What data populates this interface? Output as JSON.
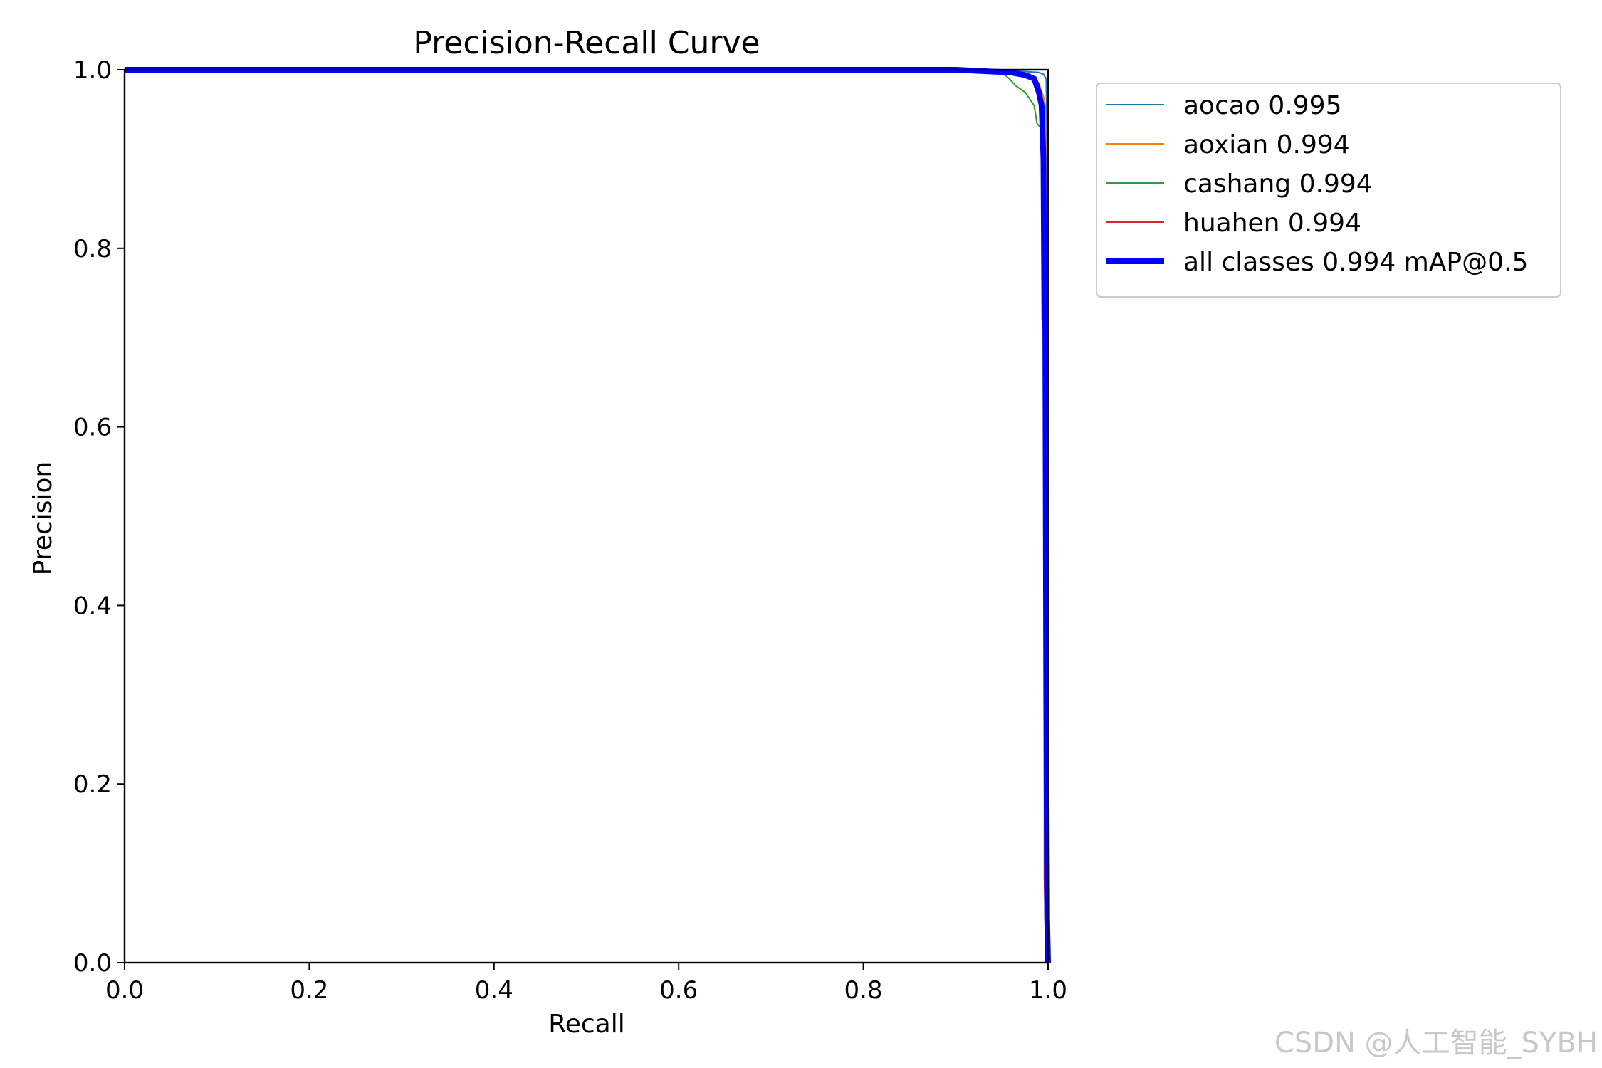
{
  "chart_data": {
    "type": "line",
    "title": "Precision-Recall Curve",
    "xlabel": "Recall",
    "ylabel": "Precision",
    "xlim": [
      0,
      1
    ],
    "ylim": [
      0,
      1
    ],
    "xticks": [
      "0.0",
      "0.2",
      "0.4",
      "0.6",
      "0.8",
      "1.0"
    ],
    "yticks": [
      "0.0",
      "0.2",
      "0.4",
      "0.6",
      "0.8",
      "1.0"
    ],
    "grid": false,
    "legend_position": "outside-upper-right",
    "series": [
      {
        "name": "aocao 0.995",
        "color": "#1f77b4",
        "width": "thin",
        "x": [
          0.0,
          0.5,
          0.9,
          0.96,
          0.99,
          0.995,
          0.998,
          1.0,
          1.0
        ],
        "y": [
          1.0,
          1.0,
          1.0,
          0.999,
          0.997,
          0.995,
          0.99,
          0.8,
          0.0
        ]
      },
      {
        "name": "aoxian 0.994",
        "color": "#ff7f0e",
        "width": "thin",
        "x": [
          0.0,
          0.5,
          0.9,
          0.95,
          0.98,
          0.99,
          0.995,
          0.997,
          0.998,
          0.999,
          1.0
        ],
        "y": [
          1.0,
          1.0,
          1.0,
          0.998,
          0.995,
          0.985,
          0.97,
          0.96,
          0.85,
          0.4,
          0.0
        ]
      },
      {
        "name": "cashang 0.994",
        "color": "#2ca02c",
        "width": "thin",
        "x": [
          0.0,
          0.5,
          0.9,
          0.95,
          0.958,
          0.965,
          0.975,
          0.985,
          0.988,
          0.992,
          0.994,
          0.996,
          0.998,
          1.0,
          1.0
        ],
        "y": [
          1.0,
          1.0,
          1.0,
          0.997,
          0.99,
          0.982,
          0.975,
          0.96,
          0.94,
          0.935,
          0.9,
          0.75,
          0.5,
          0.1,
          0.0
        ]
      },
      {
        "name": "huahen 0.994",
        "color": "#d62728",
        "width": "thin",
        "x": [
          0.0,
          0.5,
          0.9,
          0.96,
          0.98,
          0.99,
          0.994,
          0.995,
          0.996,
          0.996,
          0.997,
          0.999,
          1.0
        ],
        "y": [
          1.0,
          1.0,
          1.0,
          0.998,
          0.995,
          0.985,
          0.96,
          0.9,
          0.7,
          0.095,
          0.04,
          0.01,
          0.0
        ]
      },
      {
        "name": "all classes 0.994 mAP@0.5",
        "color": "#0000ff",
        "width": "thick",
        "x": [
          0.0,
          0.5,
          0.9,
          0.96,
          0.975,
          0.985,
          0.99,
          0.993,
          0.995,
          0.996,
          0.997,
          0.998,
          0.999,
          1.0
        ],
        "y": [
          1.0,
          1.0,
          1.0,
          0.997,
          0.994,
          0.99,
          0.975,
          0.96,
          0.9,
          0.72,
          0.71,
          0.3,
          0.05,
          0.0
        ]
      }
    ]
  },
  "watermark": "CSDN @人工智能_SYBH"
}
